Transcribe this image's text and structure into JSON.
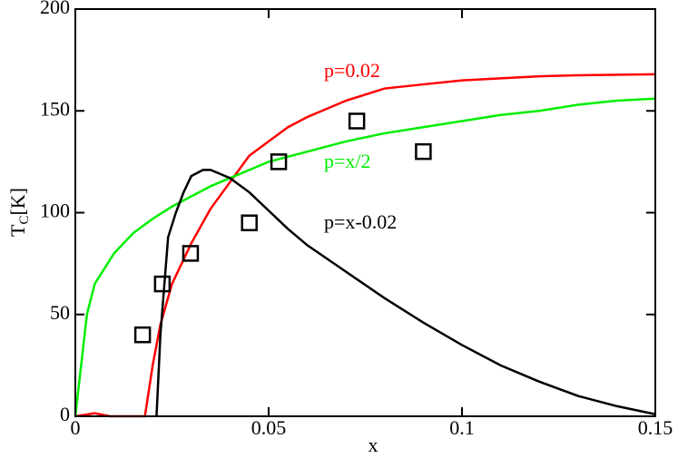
{
  "chart_data": {
    "type": "line",
    "xlabel": "x",
    "ylabel": "T",
    "ylabel_sub": "C",
    "ylabel_suffix": "[K]",
    "xlim": [
      0,
      0.15
    ],
    "xticks": [
      0,
      0.05,
      0.1,
      0.15
    ],
    "ylim": [
      0,
      200
    ],
    "yticks": [
      0,
      50,
      100,
      150,
      200
    ],
    "series": [
      {
        "name": "p=0.02",
        "color": "#ff0000",
        "x": [
          0,
          0.005,
          0.009,
          0.018,
          0.02,
          0.022,
          0.025,
          0.03,
          0.035,
          0.04,
          0.045,
          0.05,
          0.055,
          0.06,
          0.065,
          0.07,
          0.075,
          0.08,
          0.09,
          0.1,
          0.11,
          0.12,
          0.13,
          0.15
        ],
        "values": [
          0,
          1.5,
          0,
          0,
          25,
          45,
          65,
          85,
          102,
          115,
          128,
          135,
          142,
          147,
          151,
          155,
          158,
          161,
          163,
          165,
          166,
          167,
          167.5,
          168
        ]
      },
      {
        "name": "p=x/2",
        "color": "#00ee00",
        "x": [
          0,
          0.003,
          0.005,
          0.01,
          0.015,
          0.02,
          0.025,
          0.03,
          0.035,
          0.04,
          0.045,
          0.05,
          0.06,
          0.07,
          0.08,
          0.09,
          0.1,
          0.11,
          0.12,
          0.13,
          0.14,
          0.15
        ],
        "values": [
          0,
          50,
          65,
          80,
          90,
          97,
          103,
          108,
          113,
          117,
          121,
          125,
          130,
          135,
          139,
          142,
          145,
          148,
          150,
          153,
          155,
          156
        ]
      },
      {
        "name": "p=x-0.02",
        "color": "#000000",
        "x": [
          0.021,
          0.022,
          0.024,
          0.026,
          0.028,
          0.03,
          0.033,
          0.035,
          0.04,
          0.045,
          0.05,
          0.055,
          0.06,
          0.07,
          0.08,
          0.09,
          0.1,
          0.11,
          0.12,
          0.13,
          0.14,
          0.15
        ],
        "values": [
          0,
          40,
          88,
          100,
          110,
          118,
          121,
          121,
          117,
          110,
          101,
          92,
          84,
          71,
          58,
          46,
          35,
          25,
          17,
          10,
          5,
          1
        ]
      },
      {
        "type": "scatter",
        "marker": "square",
        "color": "#000000",
        "x": [
          0.0174,
          0.0225,
          0.0298,
          0.045,
          0.0526,
          0.0728,
          0.09
        ],
        "values": [
          40,
          65,
          80,
          95,
          125,
          145,
          130
        ]
      }
    ]
  }
}
